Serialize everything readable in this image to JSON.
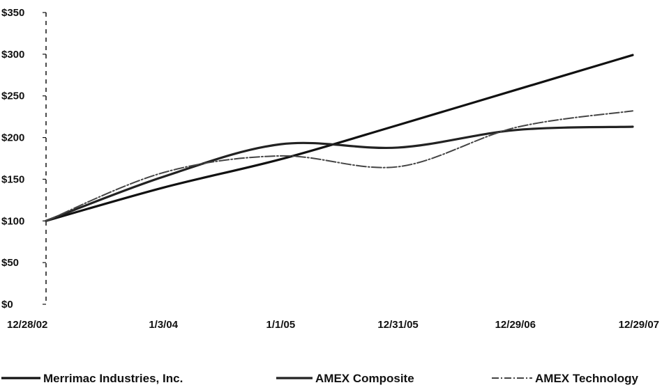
{
  "chart_data": {
    "type": "line",
    "title": "",
    "xlabel": "",
    "ylabel": "",
    "categories": [
      "12/28/02",
      "1/3/04",
      "1/1/05",
      "12/31/05",
      "12/29/06",
      "12/29/07"
    ],
    "yticks": [
      "$0",
      "$50",
      "$100",
      "$150",
      "$200",
      "$250",
      "$300",
      "$350"
    ],
    "ylim": [
      0,
      350
    ],
    "grid": false,
    "legend_position": "bottom",
    "series": [
      {
        "name": "Merrimac Industries, Inc.",
        "values": [
          100,
          140,
          174,
          215,
          257,
          299
        ],
        "color": "#111111",
        "style": "solid"
      },
      {
        "name": "AMEX Composite",
        "values": [
          100,
          153,
          192,
          188,
          209,
          213
        ],
        "color": "#222222",
        "style": "solid"
      },
      {
        "name": "AMEX Technology",
        "values": [
          100,
          158,
          178,
          165,
          212,
          232
        ],
        "color": "#444444",
        "style": "dashed"
      }
    ]
  }
}
